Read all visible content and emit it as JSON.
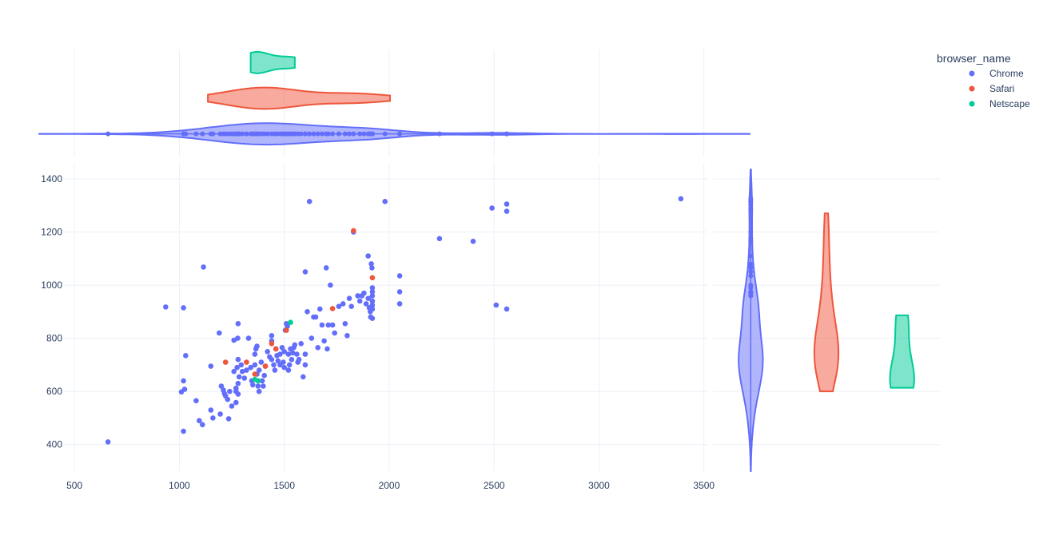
{
  "chart_data": {
    "type": "scatter",
    "title": "",
    "xlabel": "",
    "ylabel": "",
    "xlim": [
      450,
      3520
    ],
    "ylim": [
      300,
      1460
    ],
    "xticks": [
      500,
      1000,
      1500,
      2000,
      2500,
      3000,
      3500
    ],
    "yticks": [
      400,
      600,
      800,
      1000,
      1200,
      1400
    ],
    "grid": true,
    "legend": {
      "title": "browser_name",
      "position": "top-right"
    },
    "marginals": {
      "x": "violin",
      "y": "violin"
    },
    "series": [
      {
        "name": "Chrome",
        "color": "#636efa",
        "points": [
          [
            660,
            410
          ],
          [
            935,
            918
          ],
          [
            1020,
            915
          ],
          [
            1010,
            598
          ],
          [
            1020,
            640
          ],
          [
            1025,
            608
          ],
          [
            1030,
            735
          ],
          [
            1020,
            450
          ],
          [
            1080,
            565
          ],
          [
            1095,
            490
          ],
          [
            1110,
            475
          ],
          [
            1115,
            1068
          ],
          [
            1150,
            530
          ],
          [
            1150,
            695
          ],
          [
            1160,
            500
          ],
          [
            1190,
            820
          ],
          [
            1195,
            515
          ],
          [
            1200,
            620
          ],
          [
            1210,
            605
          ],
          [
            1215,
            592
          ],
          [
            1220,
            583
          ],
          [
            1230,
            570
          ],
          [
            1235,
            497
          ],
          [
            1240,
            600
          ],
          [
            1250,
            545
          ],
          [
            1260,
            675
          ],
          [
            1260,
            793
          ],
          [
            1270,
            558
          ],
          [
            1270,
            600
          ],
          [
            1270,
            612
          ],
          [
            1275,
            690
          ],
          [
            1278,
            800
          ],
          [
            1280,
            855
          ],
          [
            1280,
            720
          ],
          [
            1280,
            630
          ],
          [
            1280,
            590
          ],
          [
            1285,
            655
          ],
          [
            1295,
            700
          ],
          [
            1300,
            675
          ],
          [
            1310,
            650
          ],
          [
            1320,
            680
          ],
          [
            1330,
            800
          ],
          [
            1340,
            690
          ],
          [
            1345,
            640
          ],
          [
            1350,
            625
          ],
          [
            1360,
            700
          ],
          [
            1360,
            740
          ],
          [
            1365,
            760
          ],
          [
            1370,
            770
          ],
          [
            1370,
            665
          ],
          [
            1375,
            620
          ],
          [
            1380,
            600
          ],
          [
            1380,
            680
          ],
          [
            1390,
            710
          ],
          [
            1395,
            640
          ],
          [
            1400,
            620
          ],
          [
            1405,
            660
          ],
          [
            1410,
            695
          ],
          [
            1420,
            750
          ],
          [
            1430,
            730
          ],
          [
            1440,
            720
          ],
          [
            1440,
            790
          ],
          [
            1440,
            810
          ],
          [
            1450,
            700
          ],
          [
            1455,
            680
          ],
          [
            1460,
            760
          ],
          [
            1465,
            735
          ],
          [
            1470,
            715
          ],
          [
            1480,
            700
          ],
          [
            1480,
            740
          ],
          [
            1490,
            765
          ],
          [
            1495,
            710
          ],
          [
            1500,
            690
          ],
          [
            1500,
            750
          ],
          [
            1505,
            830
          ],
          [
            1510,
            855
          ],
          [
            1515,
            845
          ],
          [
            1520,
            740
          ],
          [
            1520,
            680
          ],
          [
            1525,
            700
          ],
          [
            1530,
            760
          ],
          [
            1535,
            720
          ],
          [
            1540,
            745
          ],
          [
            1545,
            765
          ],
          [
            1550,
            775
          ],
          [
            1560,
            740
          ],
          [
            1565,
            710
          ],
          [
            1570,
            720
          ],
          [
            1580,
            780
          ],
          [
            1590,
            655
          ],
          [
            1600,
            740
          ],
          [
            1600,
            700
          ],
          [
            1600,
            1050
          ],
          [
            1610,
            900
          ],
          [
            1620,
            1315
          ],
          [
            1630,
            800
          ],
          [
            1640,
            880
          ],
          [
            1650,
            880
          ],
          [
            1660,
            765
          ],
          [
            1670,
            910
          ],
          [
            1680,
            850
          ],
          [
            1690,
            790
          ],
          [
            1700,
            1065
          ],
          [
            1705,
            760
          ],
          [
            1710,
            850
          ],
          [
            1720,
            1000
          ],
          [
            1730,
            850
          ],
          [
            1740,
            820
          ],
          [
            1760,
            920
          ],
          [
            1780,
            930
          ],
          [
            1790,
            855
          ],
          [
            1800,
            810
          ],
          [
            1810,
            950
          ],
          [
            1820,
            920
          ],
          [
            1830,
            1200
          ],
          [
            1850,
            960
          ],
          [
            1860,
            940
          ],
          [
            1870,
            960
          ],
          [
            1880,
            970
          ],
          [
            1890,
            930
          ],
          [
            1900,
            1110
          ],
          [
            1900,
            950
          ],
          [
            1905,
            915
          ],
          [
            1910,
            900
          ],
          [
            1912,
            880
          ],
          [
            1915,
            1080
          ],
          [
            1918,
            1065
          ],
          [
            1920,
            990
          ],
          [
            1920,
            975
          ],
          [
            1920,
            960
          ],
          [
            1920,
            940
          ],
          [
            1920,
            925
          ],
          [
            1920,
            910
          ],
          [
            1920,
            875
          ],
          [
            1980,
            1315
          ],
          [
            2050,
            1035
          ],
          [
            2050,
            975
          ],
          [
            2050,
            930
          ],
          [
            2240,
            1175
          ],
          [
            2400,
            1165
          ],
          [
            2490,
            1290
          ],
          [
            2510,
            925
          ],
          [
            2560,
            1305
          ],
          [
            2560,
            1278
          ],
          [
            2560,
            910
          ],
          [
            3390,
            1325
          ]
        ]
      },
      {
        "name": "Safari",
        "color": "#ef553b",
        "points": [
          [
            1220,
            710
          ],
          [
            1320,
            710
          ],
          [
            1360,
            665
          ],
          [
            1410,
            695
          ],
          [
            1440,
            780
          ],
          [
            1460,
            760
          ],
          [
            1510,
            830
          ],
          [
            1730,
            912
          ],
          [
            1830,
            1205
          ],
          [
            1920,
            1028
          ]
        ]
      },
      {
        "name": "Netscape",
        "color": "#00cc96",
        "points": [
          [
            1360,
            645
          ],
          [
            1375,
            640
          ],
          [
            1530,
            860
          ]
        ]
      }
    ]
  }
}
